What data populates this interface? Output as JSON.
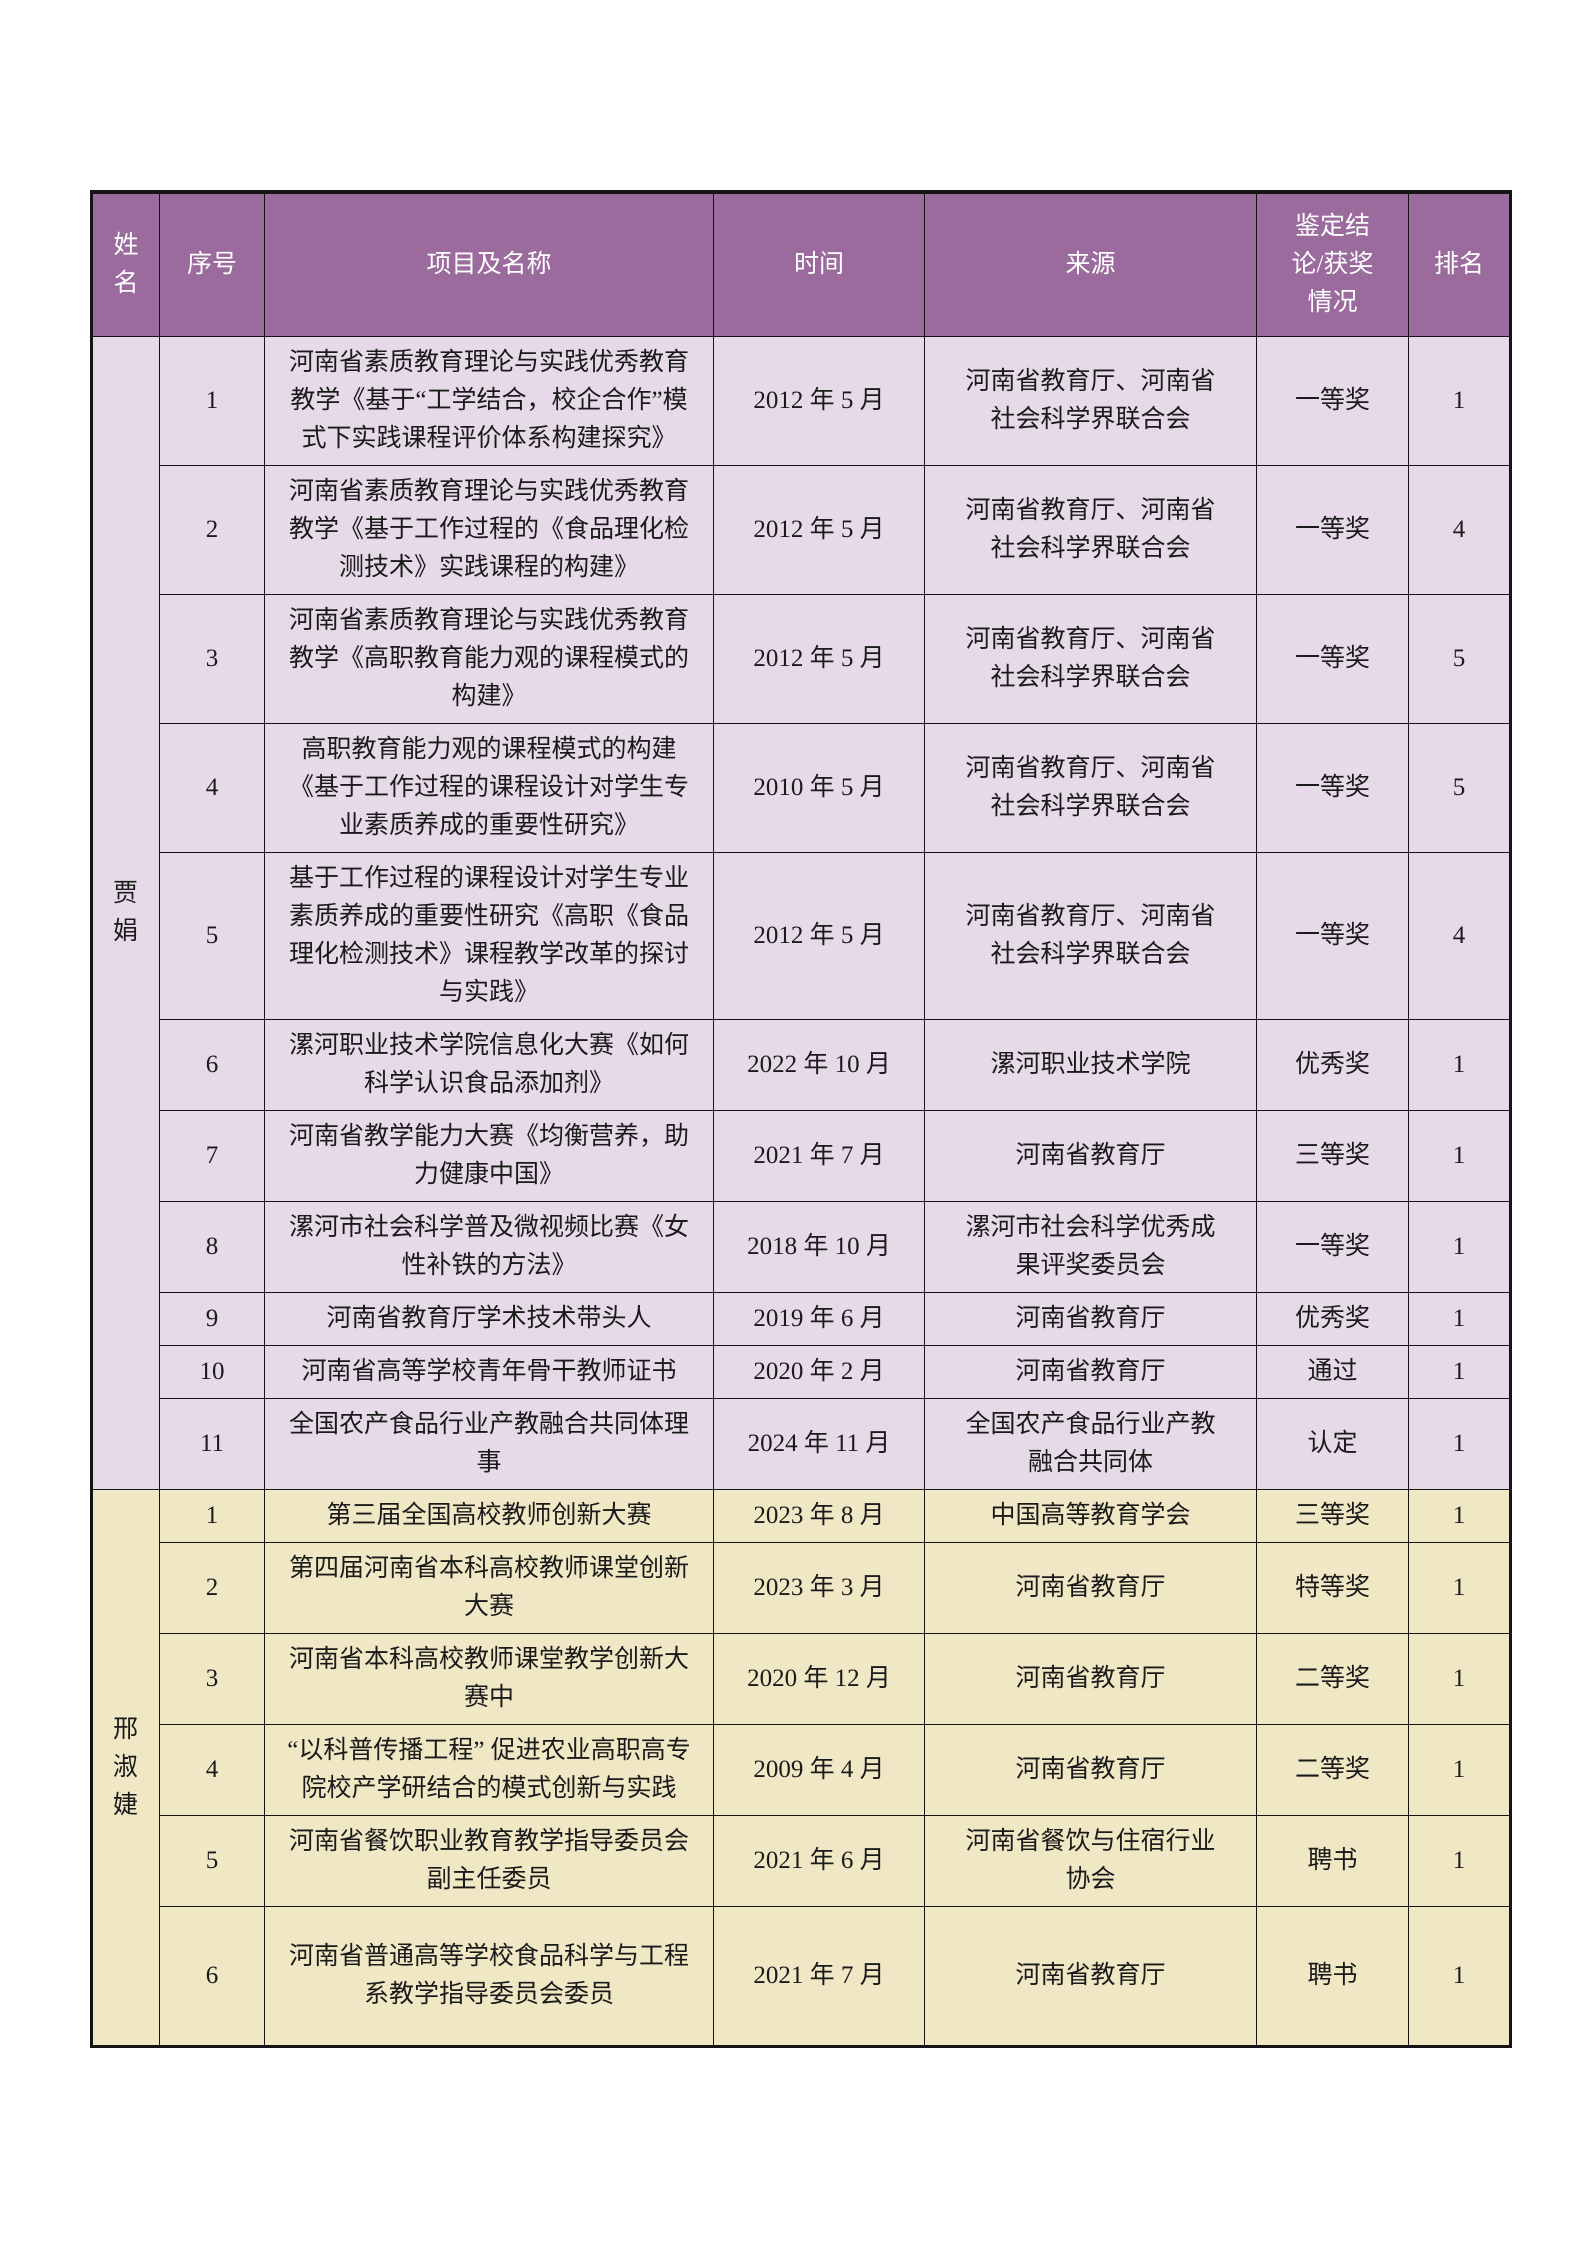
{
  "table": {
    "colors": {
      "header_bg": "#9a6b9c",
      "header_text": "#ffffff",
      "section1_bg": "#e6dae8",
      "section2_bg": "#f0e8c5",
      "border": "#141414",
      "text": "#1a1a1a"
    },
    "headers": [
      "姓名",
      "序号",
      "项目及名称",
      "时间",
      "来源",
      "鉴定结论/获奖情况",
      "排名"
    ],
    "sections": [
      {
        "name": "贾娟",
        "rows": [
          {
            "no": "1",
            "project": "河南省素质教育理论与实践优秀教育教学《基于“工学结合，校企合作”模式下实践课程评价体系构建探究》",
            "time": "2012 年 5 月",
            "source": "河南省教育厅、河南省社会科学界联合会",
            "result": "一等奖",
            "rank": "1"
          },
          {
            "no": "2",
            "project": "河南省素质教育理论与实践优秀教育教学《基于工作过程的《食品理化检测技术》实践课程的构建》",
            "time": "2012 年 5 月",
            "source": "河南省教育厅、河南省社会科学界联合会",
            "result": "一等奖",
            "rank": "4"
          },
          {
            "no": "3",
            "project": "河南省素质教育理论与实践优秀教育教学《高职教育能力观的课程模式的构建》",
            "time": "2012 年 5 月",
            "source": "河南省教育厅、河南省社会科学界联合会",
            "result": "一等奖",
            "rank": "5"
          },
          {
            "no": "4",
            "project": "高职教育能力观的课程模式的构建《基于工作过程的课程设计对学生专业素质养成的重要性研究》",
            "time": "2010 年 5 月",
            "source": "河南省教育厅、河南省社会科学界联合会",
            "result": "一等奖",
            "rank": "5"
          },
          {
            "no": "5",
            "project": "基于工作过程的课程设计对学生专业素质养成的重要性研究《高职《食品理化检测技术》课程教学改革的探讨与实践》",
            "time": "2012 年 5 月",
            "source": "河南省教育厅、河南省社会科学界联合会",
            "result": "一等奖",
            "rank": "4"
          },
          {
            "no": "6",
            "project": "漯河职业技术学院信息化大赛《如何科学认识食品添加剂》",
            "time": "2022 年 10 月",
            "source": "漯河职业技术学院",
            "result": "优秀奖",
            "rank": "1"
          },
          {
            "no": "7",
            "project": "河南省教学能力大赛《均衡营养，助力健康中国》",
            "time": "2021 年 7 月",
            "source": "河南省教育厅",
            "result": "三等奖",
            "rank": "1"
          },
          {
            "no": "8",
            "project": "漯河市社会科学普及微视频比赛《女性补铁的方法》",
            "time": "2018 年 10 月",
            "source": "漯河市社会科学优秀成果评奖委员会",
            "result": "一等奖",
            "rank": "1"
          },
          {
            "no": "9",
            "project": "河南省教育厅学术技术带头人",
            "time": "2019 年 6 月",
            "source": "河南省教育厅",
            "result": "优秀奖",
            "rank": "1"
          },
          {
            "no": "10",
            "project": "河南省高等学校青年骨干教师证书",
            "time": "2020 年 2 月",
            "source": "河南省教育厅",
            "result": "通过",
            "rank": "1"
          },
          {
            "no": "11",
            "project": "全国农产食品行业产教融合共同体理事",
            "time": "2024 年 11 月",
            "source": "全国农产食品行业产教融合共同体",
            "result": "认定",
            "rank": "1"
          }
        ]
      },
      {
        "name": "邢淑婕",
        "rows": [
          {
            "no": "1",
            "project": "第三届全国高校教师创新大赛",
            "time": "2023 年 8 月",
            "source": "中国高等教育学会",
            "result": "三等奖",
            "rank": "1"
          },
          {
            "no": "2",
            "project": "第四届河南省本科高校教师课堂创新大赛",
            "time": "2023 年 3 月",
            "source": "河南省教育厅",
            "result": "特等奖",
            "rank": "1"
          },
          {
            "no": "3",
            "project": "河南省本科高校教师课堂教学创新大赛中",
            "time": "2020 年 12 月",
            "source": "河南省教育厅",
            "result": "二等奖",
            "rank": "1"
          },
          {
            "no": "4",
            "project": "“以科普传播工程” 促进农业高职高专院校产学研结合的模式创新与实践",
            "time": "2009 年 4 月",
            "source": "河南省教育厅",
            "result": "二等奖",
            "rank": "1"
          },
          {
            "no": "5",
            "project": "河南省餐饮职业教育教学指导委员会副主任委员",
            "time": "2021 年 6 月",
            "source": "河南省餐饮与住宿行业协会",
            "result": "聘书",
            "rank": "1"
          },
          {
            "no": "6",
            "project": "河南省普通高等学校食品科学与工程系教学指导委员会委员",
            "time": "2021 年 7 月",
            "source": "河南省教育厅",
            "result": "聘书",
            "rank": "1"
          }
        ]
      }
    ]
  }
}
